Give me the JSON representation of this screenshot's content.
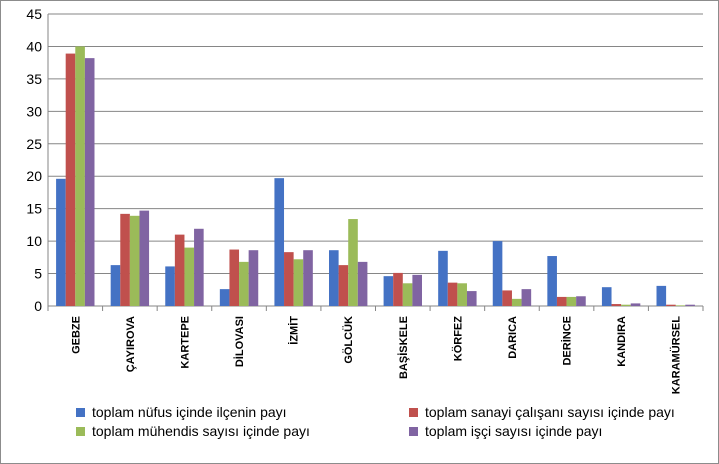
{
  "chart_data": {
    "type": "bar",
    "categories": [
      "GEBZE",
      "ÇAYIROVA",
      "KARTEPE",
      "DİLOVASI",
      "İZMİT",
      "GÖLCÜK",
      "BAŞİSKELE",
      "KÖRFEZ",
      "DARICA",
      "DERİNCE",
      "KANDIRA",
      "KARAMÜRSEL"
    ],
    "series": [
      {
        "name": "toplam nüfus içinde ilçenin payı",
        "color": "#4472C4",
        "values": [
          19.6,
          6.3,
          6.1,
          2.6,
          19.7,
          8.6,
          4.6,
          8.5,
          10.0,
          7.7,
          2.9,
          3.1
        ]
      },
      {
        "name": "toplam sanayi çalışanı sayısı içinde payı",
        "color": "#C0504D",
        "values": [
          38.9,
          14.2,
          11.0,
          8.7,
          8.3,
          6.3,
          5.1,
          3.6,
          2.4,
          1.4,
          0.3,
          0.2
        ]
      },
      {
        "name": "toplam mühendis sayısı içinde payı",
        "color": "#9BBB59",
        "values": [
          40.0,
          13.9,
          9.0,
          6.8,
          7.2,
          13.4,
          3.5,
          3.5,
          1.1,
          1.4,
          0.2,
          0.1
        ]
      },
      {
        "name": "toplam işçi sayısı içinde payı",
        "color": "#8064A2",
        "values": [
          38.2,
          14.7,
          11.9,
          8.6,
          8.6,
          6.8,
          4.8,
          2.3,
          2.6,
          1.5,
          0.4,
          0.2
        ]
      }
    ],
    "yticks": [
      "0",
      "5",
      "10",
      "15",
      "20",
      "25",
      "30",
      "35",
      "40",
      "45"
    ],
    "ylim": [
      0,
      45
    ],
    "grid": true,
    "legend_position": "bottom"
  }
}
